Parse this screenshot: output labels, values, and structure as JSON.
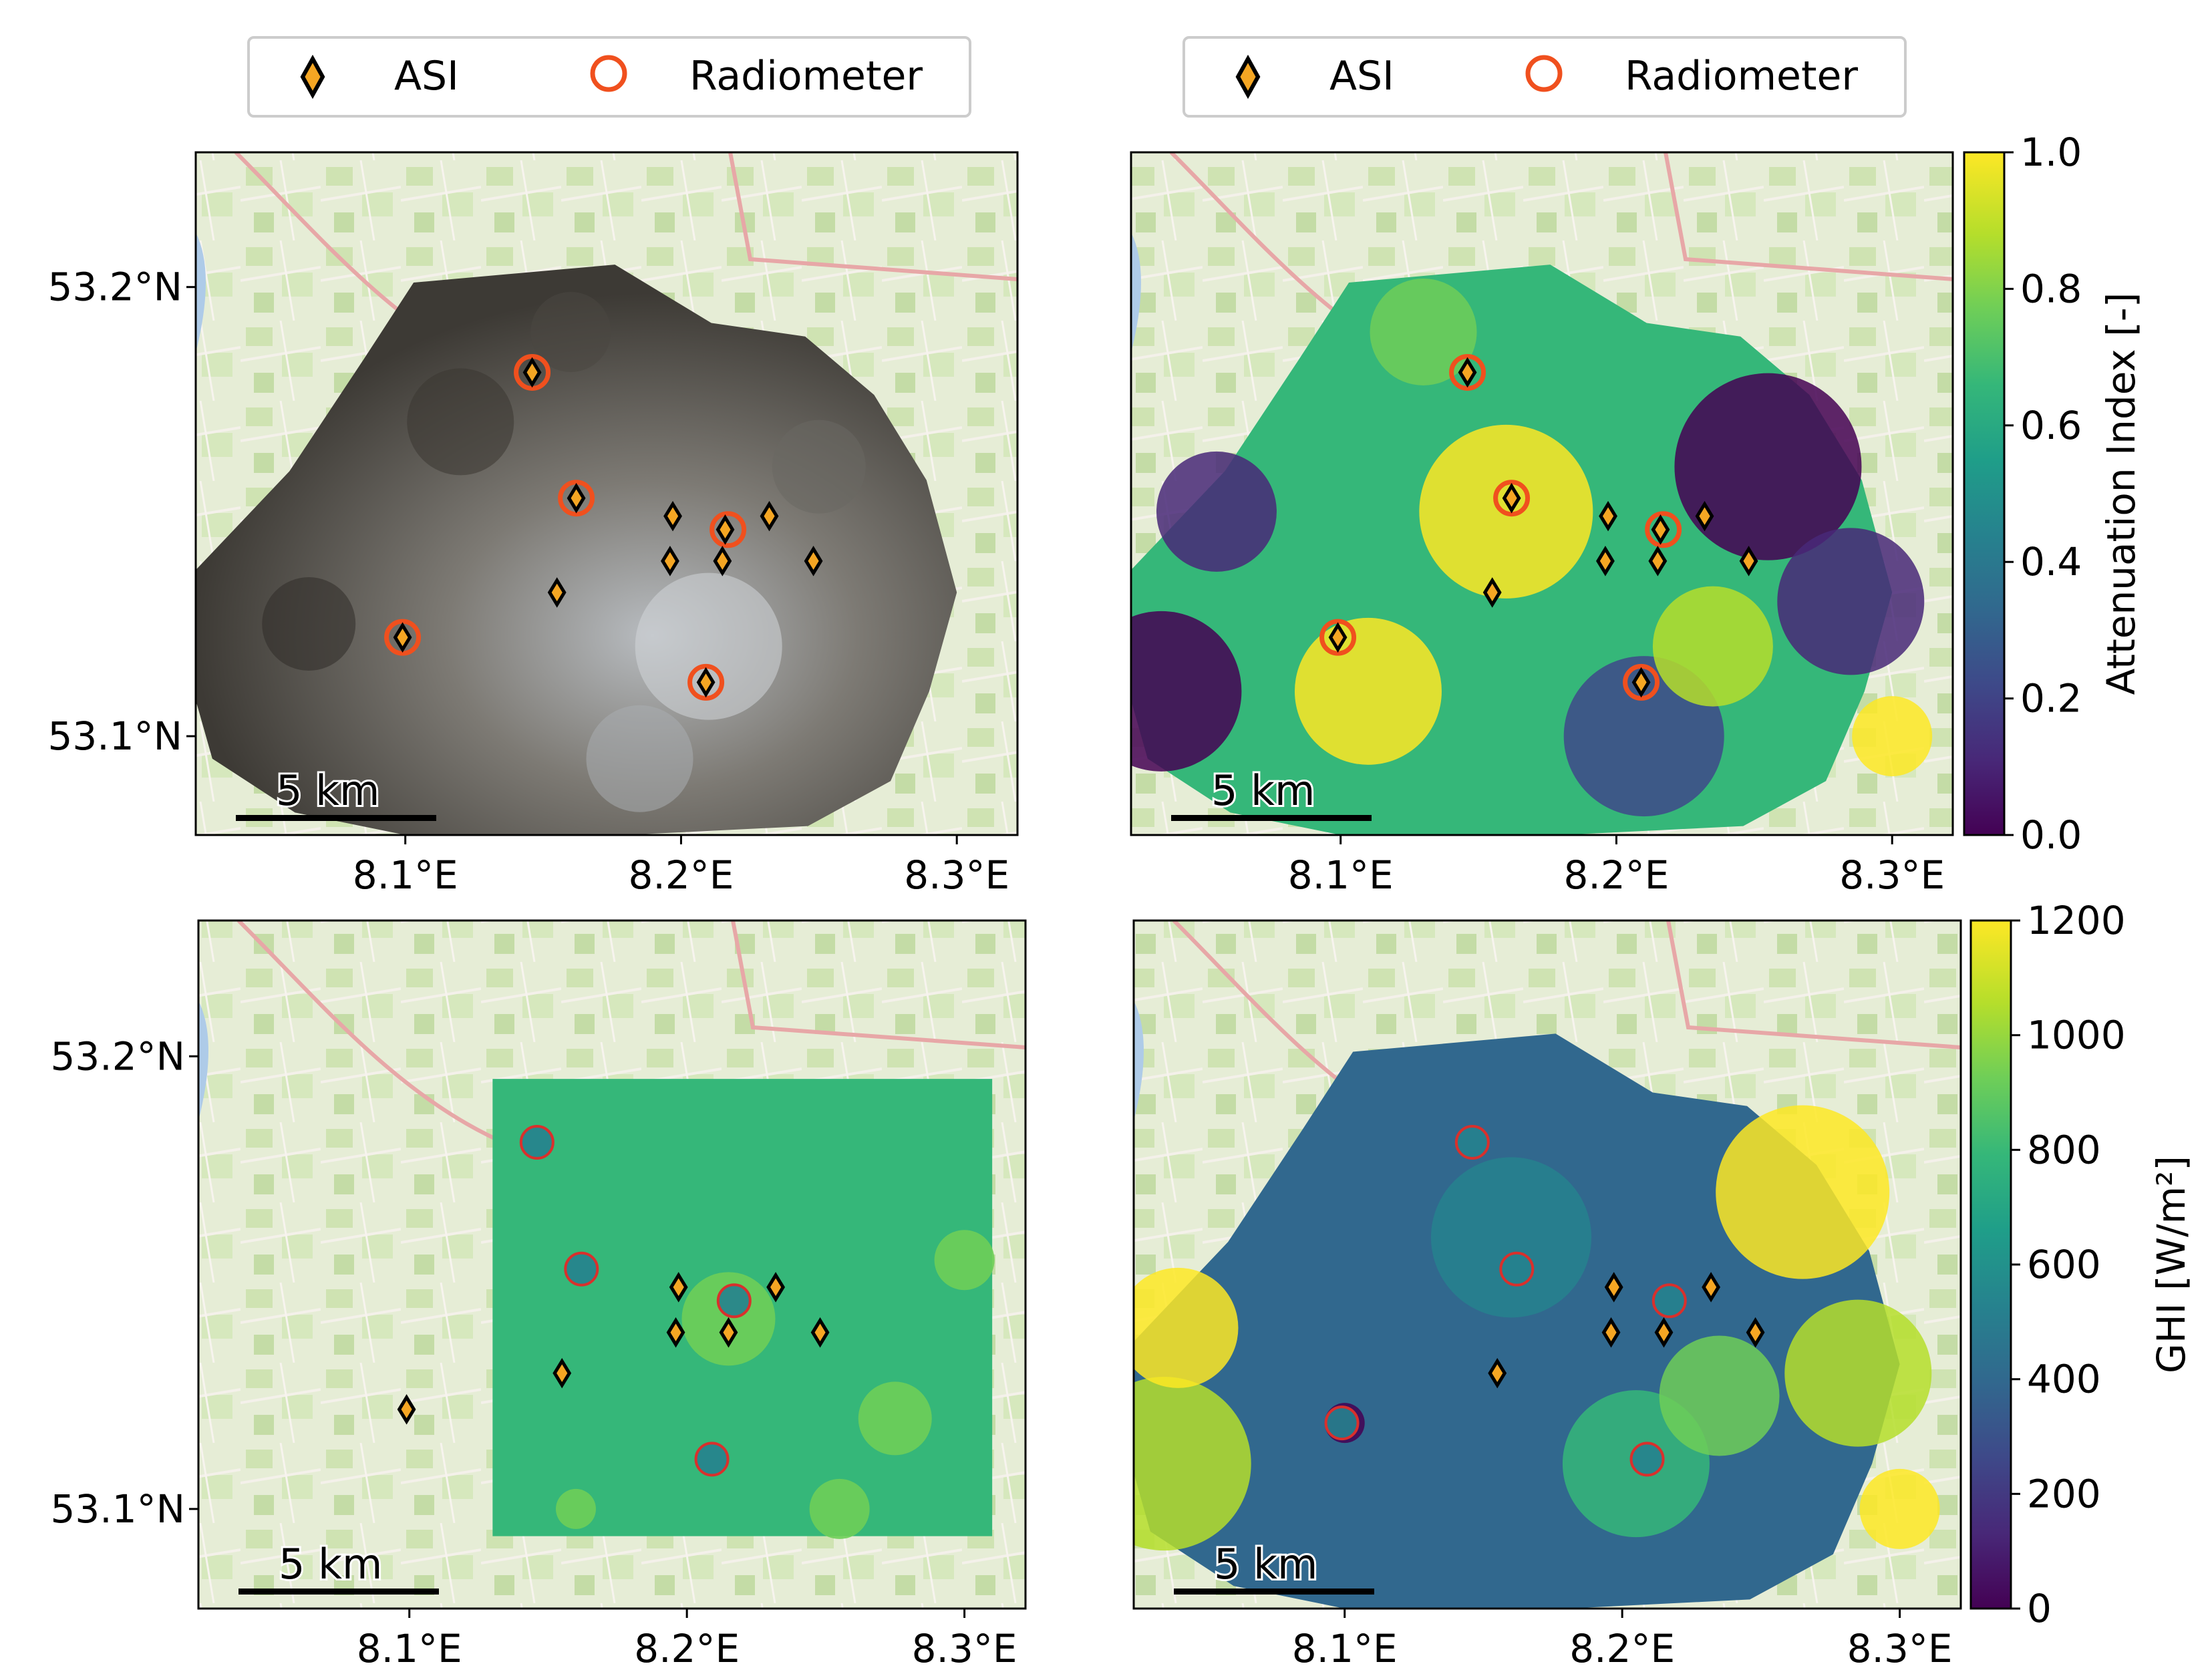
{
  "chart_data": [
    {
      "type": "map",
      "panel": "top-left",
      "content": "sky image projection",
      "xticks": [
        "8.1°E",
        "8.2°E",
        "8.3°E"
      ],
      "yticks": [
        "53.2°N",
        "53.1°N"
      ],
      "scalebar": "5 km",
      "legend": [
        "ASI",
        "Radiometer"
      ],
      "asi": [
        [
          8.099,
          53.122
        ],
        [
          8.146,
          53.181
        ],
        [
          8.162,
          53.153
        ],
        [
          8.155,
          53.132
        ],
        [
          8.197,
          53.149
        ],
        [
          8.196,
          53.139
        ],
        [
          8.215,
          53.139
        ],
        [
          8.216,
          53.146
        ],
        [
          8.232,
          53.149
        ],
        [
          8.248,
          53.139
        ],
        [
          8.209,
          53.112
        ]
      ],
      "radiometer": [
        [
          8.099,
          53.122
        ],
        [
          8.146,
          53.181
        ],
        [
          8.162,
          53.153
        ],
        [
          8.217,
          53.146
        ],
        [
          8.209,
          53.112
        ]
      ]
    },
    {
      "type": "heatmap",
      "panel": "top-right",
      "content": "Attenuation Index map",
      "xticks": [
        "8.1°E",
        "8.2°E",
        "8.3°E"
      ],
      "yticks": [],
      "scalebar": "5 km",
      "legend": [
        "ASI",
        "Radiometer"
      ],
      "colorbar": {
        "label": "Attenuation Index [-]",
        "range": [
          0.0,
          1.0
        ],
        "ticks": [
          "0.0",
          "0.2",
          "0.4",
          "0.6",
          "0.8",
          "1.0"
        ]
      },
      "asi": [
        [
          8.099,
          53.122
        ],
        [
          8.146,
          53.181
        ],
        [
          8.162,
          53.153
        ],
        [
          8.155,
          53.132
        ],
        [
          8.197,
          53.149
        ],
        [
          8.196,
          53.139
        ],
        [
          8.215,
          53.139
        ],
        [
          8.216,
          53.146
        ],
        [
          8.232,
          53.149
        ],
        [
          8.248,
          53.139
        ],
        [
          8.209,
          53.112
        ]
      ],
      "radiometer": [
        [
          8.099,
          53.122
        ],
        [
          8.146,
          53.181
        ],
        [
          8.162,
          53.153
        ],
        [
          8.217,
          53.146
        ],
        [
          8.209,
          53.112
        ]
      ]
    },
    {
      "type": "heatmap",
      "panel": "bottom-left",
      "content": "GHI reference map",
      "xticks": [
        "8.1°E",
        "8.2°E",
        "8.3°E"
      ],
      "yticks": [
        "53.2°N",
        "53.1°N"
      ],
      "scalebar": "5 km",
      "asi": [
        [
          8.099,
          53.122
        ],
        [
          8.155,
          53.13
        ],
        [
          8.197,
          53.149
        ],
        [
          8.196,
          53.139
        ],
        [
          8.215,
          53.139
        ],
        [
          8.232,
          53.149
        ],
        [
          8.248,
          53.139
        ]
      ],
      "radiometer": [
        [
          8.146,
          53.181
        ],
        [
          8.162,
          53.153
        ],
        [
          8.217,
          53.146
        ],
        [
          8.209,
          53.111
        ]
      ]
    },
    {
      "type": "heatmap",
      "panel": "bottom-right",
      "content": "GHI map",
      "xticks": [
        "8.1°E",
        "8.2°E",
        "8.3°E"
      ],
      "yticks": [],
      "scalebar": "5 km",
      "colorbar": {
        "label": "GHI [W/m²]",
        "range": [
          0,
          1200
        ],
        "ticks": [
          "0",
          "200",
          "400",
          "600",
          "800",
          "1000",
          "1200"
        ]
      },
      "asi": [
        [
          8.155,
          53.13
        ],
        [
          8.197,
          53.149
        ],
        [
          8.196,
          53.139
        ],
        [
          8.215,
          53.139
        ],
        [
          8.232,
          53.149
        ],
        [
          8.248,
          53.139
        ]
      ],
      "radiometer": [
        [
          8.146,
          53.181
        ],
        [
          8.162,
          53.153
        ],
        [
          8.217,
          53.146
        ],
        [
          8.099,
          53.119
        ],
        [
          8.209,
          53.111
        ]
      ]
    }
  ],
  "legend": {
    "asi_label": "ASI",
    "radiometer_label": "Radiometer"
  },
  "colors": {
    "asi_fill": "#f5a623",
    "radiometer_edge": "#f0501e",
    "map_bg": "#e9efd9",
    "viridis": [
      "#440154",
      "#482878",
      "#3e4989",
      "#31688e",
      "#26828e",
      "#1f9e89",
      "#35b779",
      "#6ece58",
      "#b5de2b",
      "#fde725"
    ]
  }
}
